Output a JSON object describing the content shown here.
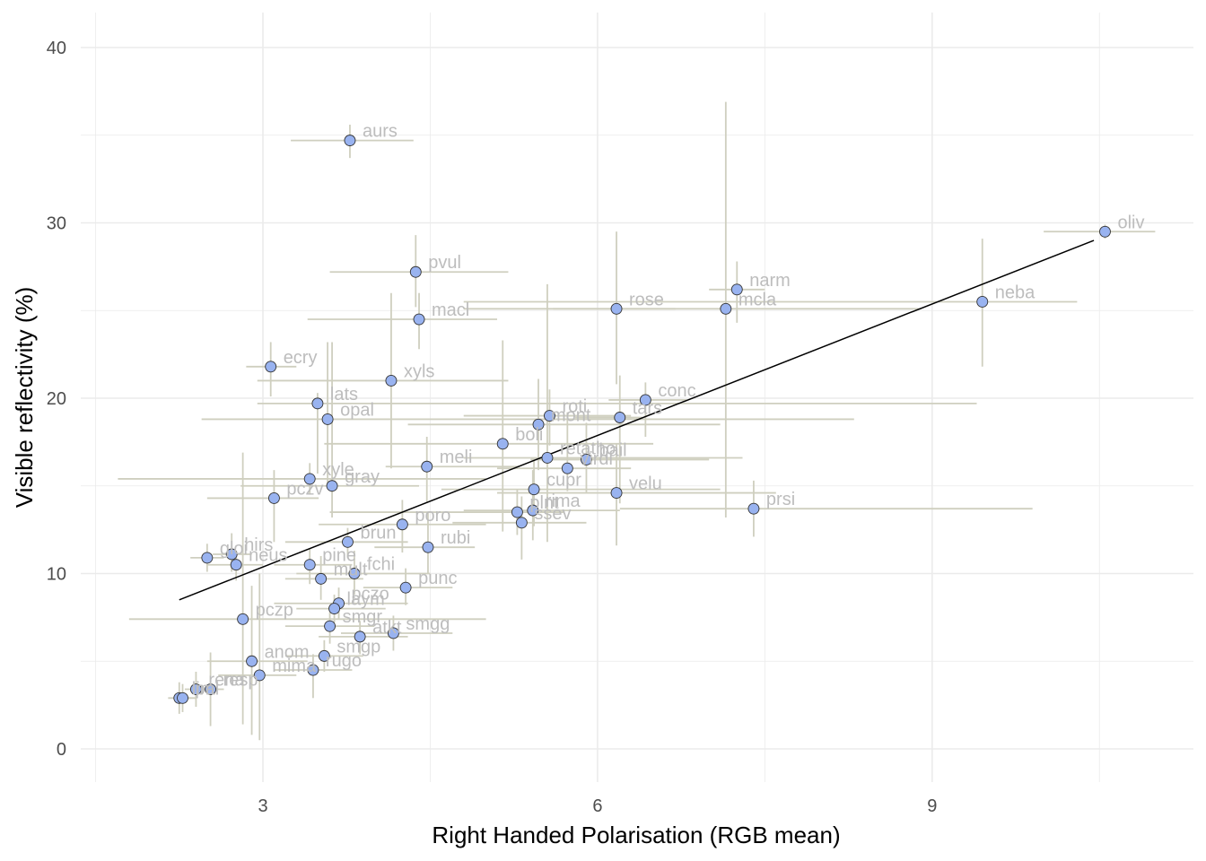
{
  "chart_data": {
    "type": "scatter",
    "xlabel": "Right Handed Polarisation (RGB mean)",
    "ylabel": "Visible reflectivity (%)",
    "xlim": [
      1.5,
      11.3
    ],
    "ylim": [
      -2,
      42
    ],
    "x_ticks": [
      3,
      6,
      9
    ],
    "y_ticks": [
      0,
      10,
      20,
      30,
      40
    ],
    "grid": true,
    "colors": {
      "point_fill": "#99b3f0",
      "point_stroke": "#333333",
      "errorbar": "#cfcfbf",
      "fit_line": "#000000",
      "label": "#bdbdbd",
      "grid": "#ebebeb"
    },
    "fit_line": {
      "x": [
        2.25,
        10.45
      ],
      "y": [
        8.5,
        29.0
      ]
    },
    "points": [
      {
        "label": "aurs",
        "x": 3.78,
        "y": 34.7,
        "xerr": [
          3.25,
          4.35
        ],
        "yerr": [
          33.7,
          35.6
        ]
      },
      {
        "label": "oliv",
        "x": 10.55,
        "y": 29.5,
        "xerr": [
          10.0,
          11.0
        ],
        "yerr": [
          29.1,
          29.9
        ]
      },
      {
        "label": "pvul",
        "x": 4.37,
        "y": 27.2,
        "xerr": [
          3.6,
          5.2
        ],
        "yerr": [
          25.2,
          29.3
        ]
      },
      {
        "label": "narm",
        "x": 7.25,
        "y": 26.2,
        "xerr": [
          7.0,
          7.5
        ],
        "yerr": [
          24.3,
          27.8
        ]
      },
      {
        "label": "neba",
        "x": 9.45,
        "y": 25.5,
        "xerr": [
          4.8,
          10.3
        ],
        "yerr": [
          21.8,
          29.1
        ]
      },
      {
        "label": "rose",
        "x": 6.17,
        "y": 25.1,
        "xerr": [
          5.6,
          6.7
        ],
        "yerr": [
          20.8,
          29.5
        ]
      },
      {
        "label": "mcla",
        "x": 7.15,
        "y": 25.1,
        "xerr": [
          4.8,
          8.9
        ],
        "yerr": [
          13.2,
          36.9
        ]
      },
      {
        "label": "macl",
        "x": 4.4,
        "y": 24.5,
        "xerr": [
          3.4,
          5.1
        ],
        "yerr": [
          22.8,
          26.0
        ]
      },
      {
        "label": "ecry",
        "x": 3.07,
        "y": 21.8,
        "xerr": [
          2.85,
          3.3
        ],
        "yerr": [
          20.1,
          23.2
        ]
      },
      {
        "label": "xyls",
        "x": 4.15,
        "y": 21.0,
        "xerr": [
          2.95,
          5.2
        ],
        "yerr": [
          16.0,
          26.0
        ]
      },
      {
        "label": "conc",
        "x": 6.43,
        "y": 19.9,
        "xerr": [
          6.1,
          6.8
        ],
        "yerr": [
          17.8,
          20.9
        ]
      },
      {
        "label": "lats",
        "x": 3.49,
        "y": 19.7,
        "xerr": [
          2.95,
          9.4
        ],
        "yerr": [
          15.7,
          20.3
        ]
      },
      {
        "label": "roti",
        "x": 5.57,
        "y": 19.0,
        "xerr": [
          4.8,
          6.3
        ],
        "yerr": [
          17.3,
          20.5
        ]
      },
      {
        "label": "tars",
        "x": 6.2,
        "y": 18.9,
        "xerr": [
          5.8,
          6.4
        ],
        "yerr": [
          14.0,
          21.3
        ]
      },
      {
        "label": "opal",
        "x": 3.58,
        "y": 18.8,
        "xerr": [
          2.45,
          8.3
        ],
        "yerr": [
          15.0,
          23.2
        ]
      },
      {
        "label": "mont",
        "x": 5.47,
        "y": 18.5,
        "xerr": [
          4.3,
          7.1
        ],
        "yerr": [
          15.9,
          21.1
        ]
      },
      {
        "label": "boli",
        "x": 5.15,
        "y": 17.4,
        "xerr": [
          3.55,
          6.5
        ],
        "yerr": [
          12.4,
          23.3
        ]
      },
      {
        "label": "retatho",
        "x": 5.55,
        "y": 16.6,
        "xerr": [
          4.8,
          7.3
        ],
        "yerr": [
          11.8,
          26.5
        ]
      },
      {
        "label": "bail",
        "x": 5.9,
        "y": 16.5,
        "xerr": [
          5.4,
          7.0
        ],
        "yerr": [
          14.6,
          18.6
        ]
      },
      {
        "label": "meli",
        "x": 4.47,
        "y": 16.1,
        "xerr": [
          4.1,
          5.3
        ],
        "yerr": [
          14.1,
          17.8
        ]
      },
      {
        "label": "virdi",
        "x": 5.73,
        "y": 16.0,
        "xerr": [
          5.1,
          6.3
        ],
        "yerr": [
          14.7,
          19.2
        ]
      },
      {
        "label": "xyle",
        "x": 3.42,
        "y": 15.4,
        "xerr": [
          1.7,
          5.0
        ],
        "yerr": [
          14.5,
          16.3
        ]
      },
      {
        "label": "gray",
        "x": 3.62,
        "y": 15.0,
        "xerr": [
          2.8,
          4.4
        ],
        "yerr": [
          13.2,
          23.2
        ]
      },
      {
        "label": "velu",
        "x": 6.17,
        "y": 14.6,
        "xerr": [
          5.1,
          7.6
        ],
        "yerr": [
          11.6,
          17.4
        ]
      },
      {
        "label": "pczv",
        "x": 3.1,
        "y": 14.3,
        "xerr": [
          2.5,
          3.5
        ],
        "yerr": [
          11.8,
          15.9
        ]
      },
      {
        "label": "cupr",
        "x": 5.43,
        "y": 14.8,
        "xerr": [
          4.6,
          7.1
        ],
        "yerr": [
          12.7,
          16.5
        ]
      },
      {
        "label": "prsi",
        "x": 7.4,
        "y": 13.7,
        "xerr": [
          6.2,
          9.9
        ],
        "yerr": [
          12.1,
          15.3
        ]
      },
      {
        "label": "rima",
        "x": 5.42,
        "y": 13.6,
        "xerr": [
          4.8,
          6.2
        ],
        "yerr": [
          11.9,
          15.9
        ]
      },
      {
        "label": "plnt",
        "x": 5.28,
        "y": 13.5,
        "xerr": [
          3.6,
          5.7
        ],
        "yerr": [
          12.2,
          14.8
        ]
      },
      {
        "label": "ssev",
        "x": 5.32,
        "y": 12.9,
        "xerr": [
          4.7,
          5.9
        ],
        "yerr": [
          10.8,
          14.4
        ]
      },
      {
        "label": "poro",
        "x": 4.25,
        "y": 12.8,
        "xerr": [
          3.5,
          5.0
        ],
        "yerr": [
          11.2,
          14.2
        ]
      },
      {
        "label": "brun",
        "x": 3.76,
        "y": 11.8,
        "xerr": [
          3.2,
          4.3
        ],
        "yerr": [
          10.9,
          12.6
        ]
      },
      {
        "label": "rubi",
        "x": 4.48,
        "y": 11.5,
        "xerr": [
          4.0,
          4.9
        ],
        "yerr": [
          10.0,
          13.5
        ]
      },
      {
        "label": "hirs",
        "x": 2.72,
        "y": 11.1,
        "xerr": [
          2.55,
          2.9
        ],
        "yerr": [
          10.1,
          12.3
        ]
      },
      {
        "label": "gloi",
        "x": 2.5,
        "y": 10.9,
        "xerr": [
          2.35,
          2.65
        ],
        "yerr": [
          10.1,
          11.7
        ]
      },
      {
        "label": "fchi",
        "x": 3.82,
        "y": 10.0,
        "xerr": [
          3.3,
          4.5
        ],
        "yerr": [
          8.8,
          11.3
        ]
      },
      {
        "label": "pine",
        "x": 3.42,
        "y": 10.5,
        "xerr": [
          3.1,
          3.8
        ],
        "yerr": [
          9.4,
          11.4
        ]
      },
      {
        "label": "neus",
        "x": 2.76,
        "y": 10.5,
        "xerr": [
          2.5,
          3.0
        ],
        "yerr": [
          9.6,
          11.3
        ]
      },
      {
        "label": "mult",
        "x": 3.52,
        "y": 9.7,
        "xerr": [
          3.2,
          3.9
        ],
        "yerr": [
          8.5,
          11.0
        ]
      },
      {
        "label": "punc",
        "x": 4.28,
        "y": 9.2,
        "xerr": [
          3.9,
          4.7
        ],
        "yerr": [
          8.2,
          10.3
        ]
      },
      {
        "label": "pczo",
        "x": 3.68,
        "y": 8.3,
        "xerr": [
          3.1,
          4.3
        ],
        "yerr": [
          7.4,
          9.2
        ]
      },
      {
        "label": "laym",
        "x": 3.64,
        "y": 8.0,
        "xerr": [
          3.3,
          4.1
        ],
        "yerr": [
          7.2,
          8.8
        ]
      },
      {
        "label": "pczp",
        "x": 2.82,
        "y": 7.4,
        "xerr": [
          1.8,
          5.0
        ],
        "yerr": [
          1.4,
          16.9
        ]
      },
      {
        "label": "smgr",
        "x": 3.6,
        "y": 7.0,
        "xerr": [
          3.2,
          4.0
        ],
        "yerr": [
          6.0,
          7.8
        ]
      },
      {
        "label": "smgg",
        "x": 4.17,
        "y": 6.6,
        "xerr": [
          3.7,
          4.7
        ],
        "yerr": [
          5.6,
          7.6
        ]
      },
      {
        "label": "atkt",
        "x": 3.87,
        "y": 6.4,
        "xerr": [
          3.5,
          4.3
        ],
        "yerr": [
          5.4,
          7.3
        ]
      },
      {
        "label": "smgp",
        "x": 3.55,
        "y": 5.3,
        "xerr": [
          3.2,
          3.9
        ],
        "yerr": [
          4.4,
          6.2
        ]
      },
      {
        "label": "anom",
        "x": 2.9,
        "y": 5.0,
        "xerr": [
          2.5,
          3.4
        ],
        "yerr": [
          0.8,
          9.3
        ]
      },
      {
        "label": "rugo",
        "x": 3.45,
        "y": 4.5,
        "xerr": [
          3.1,
          3.8
        ],
        "yerr": [
          2.9,
          5.4
        ]
      },
      {
        "label": "mima",
        "x": 2.97,
        "y": 4.2,
        "xerr": [
          2.6,
          3.3
        ],
        "yerr": [
          0.5,
          10.0
        ]
      },
      {
        "label": "rena",
        "x": 2.4,
        "y": 3.4,
        "xerr": [
          2.3,
          2.5
        ],
        "yerr": [
          2.4,
          4.4
        ]
      },
      {
        "label": "resp",
        "x": 2.53,
        "y": 3.4,
        "xerr": [
          2.4,
          2.65
        ],
        "yerr": [
          1.3,
          5.5
        ]
      },
      {
        "label": "lim",
        "x": 2.25,
        "y": 2.9,
        "xerr": [
          2.15,
          2.35
        ],
        "yerr": [
          2.0,
          3.8
        ]
      },
      {
        "label": "pal",
        "x": 2.28,
        "y": 2.9,
        "xerr": [
          2.2,
          2.4
        ],
        "yerr": [
          2.1,
          3.7
        ]
      }
    ]
  }
}
